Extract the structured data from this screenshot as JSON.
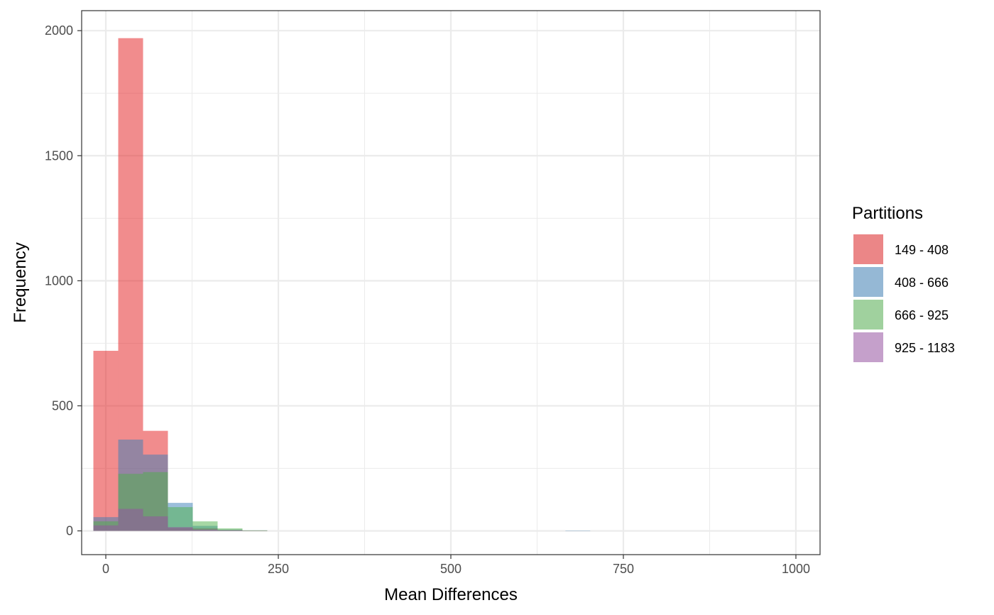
{
  "chart_data": {
    "type": "bar",
    "subtype": "overlapping-histogram",
    "xlabel": "Mean Differences",
    "ylabel": "Frequency",
    "xlim": [
      -35,
      1035
    ],
    "ylim": [
      -95,
      2080
    ],
    "x_ticks": [
      0,
      250,
      500,
      750,
      1000
    ],
    "x_tick_labels": [
      "0",
      "250",
      "500",
      "750",
      "1000"
    ],
    "y_ticks": [
      0,
      500,
      1000,
      1500,
      2000
    ],
    "y_tick_labels": [
      "0",
      "500",
      "1000",
      "1500",
      "2000"
    ],
    "bin_width": 36,
    "bin_centers": [
      0,
      36,
      72,
      108,
      144,
      180,
      216,
      684
    ],
    "grid": true,
    "legend": {
      "title": "Partitions",
      "placement": "right",
      "entries": [
        "149 - 408",
        "408 - 666",
        "666 - 925",
        "925 - 1183"
      ]
    },
    "series": [
      {
        "name": "149 - 408",
        "color": "#E41A1C",
        "values": [
          720,
          1970,
          400,
          12,
          10,
          4,
          1,
          0
        ]
      },
      {
        "name": "408 - 666",
        "color": "#377EB8",
        "values": [
          55,
          365,
          305,
          112,
          20,
          5,
          2,
          1
        ]
      },
      {
        "name": "666 - 925",
        "color": "#4DAF4A",
        "values": [
          38,
          228,
          235,
          95,
          38,
          10,
          2,
          0
        ]
      },
      {
        "name": "925 - 1183",
        "color": "#984EA3",
        "values": [
          22,
          88,
          58,
          15,
          5,
          2,
          0,
          0
        ]
      }
    ]
  }
}
